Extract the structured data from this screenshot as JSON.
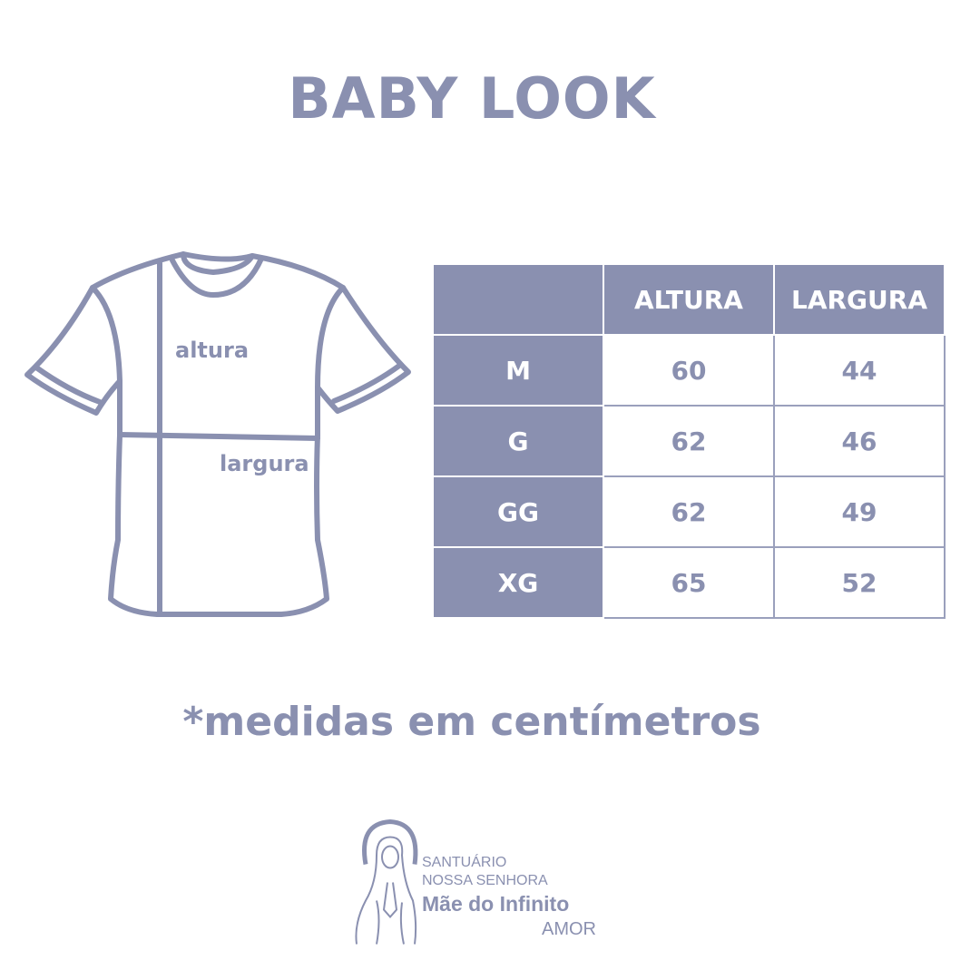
{
  "title": "BABY LOOK",
  "diagram": {
    "height_label": "altura",
    "width_label": "largura"
  },
  "table": {
    "headers": [
      "",
      "ALTURA",
      "LARGURA"
    ],
    "rows": [
      [
        "M",
        "60",
        "44"
      ],
      [
        "G",
        "62",
        "46"
      ],
      [
        "GG",
        "62",
        "49"
      ],
      [
        "XG",
        "65",
        "52"
      ]
    ]
  },
  "note": "*medidas em centímetros",
  "logo": {
    "line1": "SANTUÁRIO",
    "line2": "NOSSA SENHORA",
    "line3": "Mãe do Infinito",
    "line4": "AMOR"
  },
  "colors": {
    "accent": "#8a90b0",
    "background": "#ffffff"
  }
}
